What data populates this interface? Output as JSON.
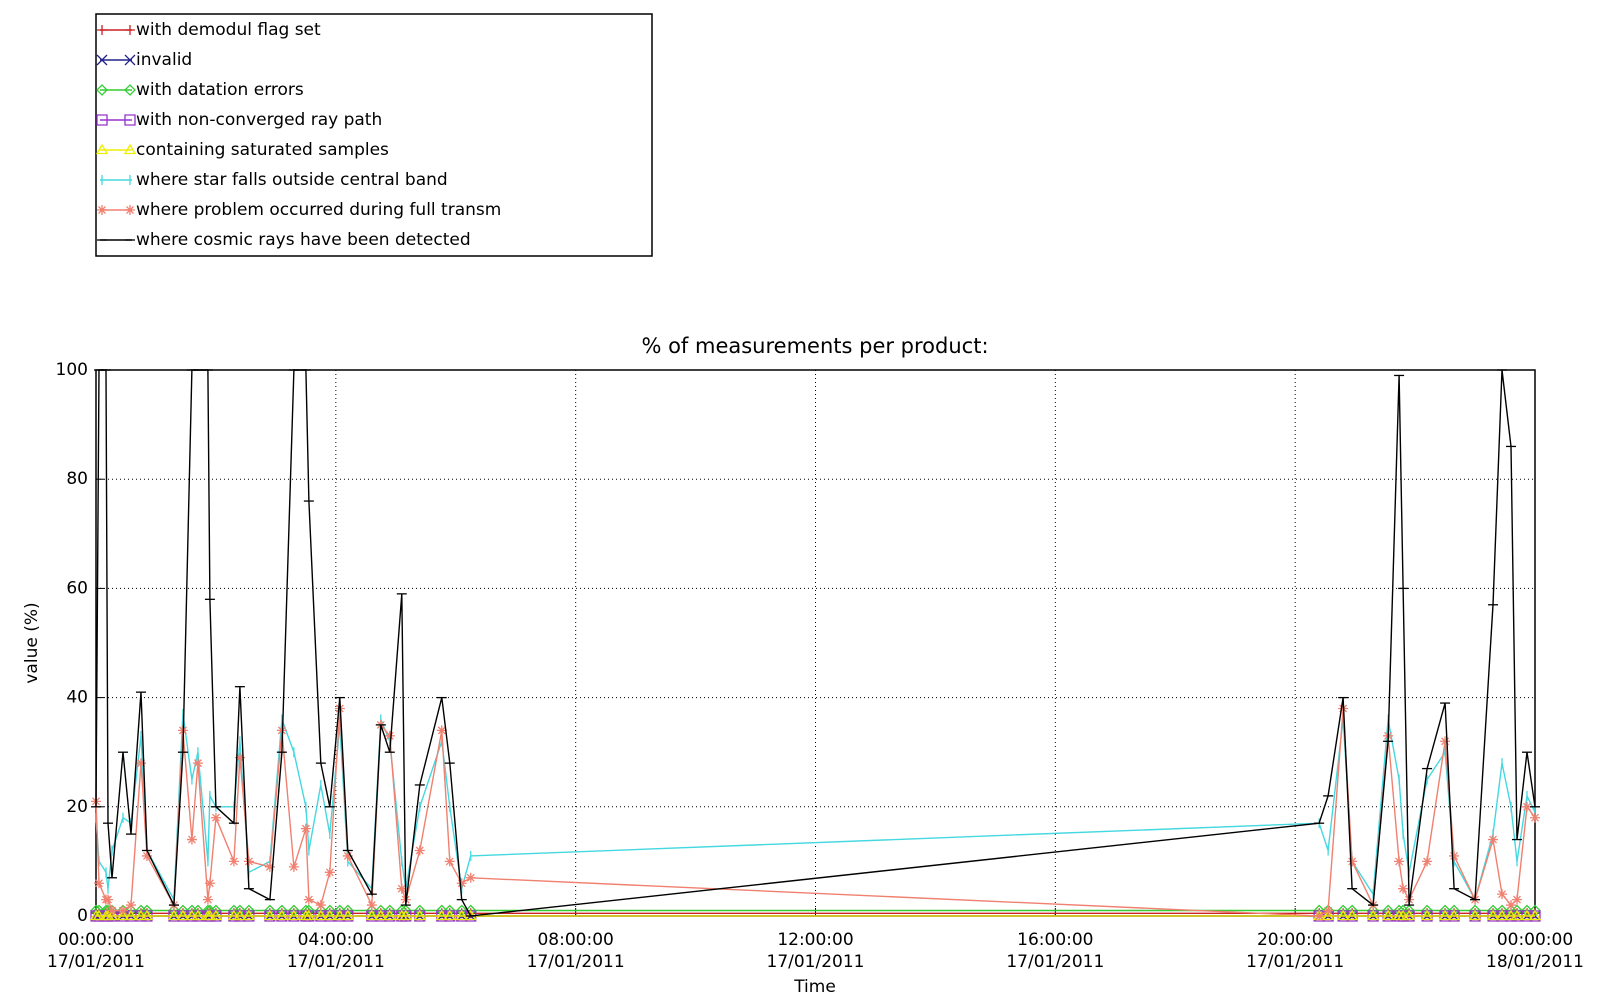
{
  "chart_data": {
    "type": "line",
    "title": "% of measurements per product:",
    "xlabel": "Time",
    "ylabel": "value (%)",
    "grid": true,
    "legend": "top-left",
    "xlim": [
      "2011-01-17T00:00:00",
      "2011-01-18T00:00:00"
    ],
    "xticks": [
      {
        "value": "2011-01-17T00:00:00",
        "label": [
          "00:00:00",
          "17/01/2011"
        ]
      },
      {
        "value": "2011-01-17T04:00:00",
        "label": [
          "04:00:00",
          "17/01/2011"
        ]
      },
      {
        "value": "2011-01-17T08:00:00",
        "label": [
          "08:00:00",
          "17/01/2011"
        ]
      },
      {
        "value": "2011-01-17T12:00:00",
        "label": [
          "12:00:00",
          "17/01/2011"
        ]
      },
      {
        "value": "2011-01-17T16:00:00",
        "label": [
          "16:00:00",
          "17/01/2011"
        ]
      },
      {
        "value": "2011-01-17T20:00:00",
        "label": [
          "20:00:00",
          "17/01/2011"
        ]
      },
      {
        "value": "2011-01-18T00:00:00",
        "label": [
          "00:00:00",
          "18/01/2011"
        ]
      }
    ],
    "ylim": [
      0,
      100
    ],
    "yticks": [
      0,
      20,
      40,
      60,
      80,
      100
    ],
    "x": [
      "2011-01-17T00:00:00",
      "2011-01-17T00:03:00",
      "2011-01-17T00:10:00",
      "2011-01-17T00:12:00",
      "2011-01-17T00:16:00",
      "2011-01-17T00:27:00",
      "2011-01-17T00:35:00",
      "2011-01-17T00:45:00",
      "2011-01-17T00:51:00",
      "2011-01-17T01:18:00",
      "2011-01-17T01:27:00",
      "2011-01-17T01:36:00",
      "2011-01-17T01:42:00",
      "2011-01-17T01:52:00",
      "2011-01-17T01:54:00",
      "2011-01-17T02:00:00",
      "2011-01-17T02:18:00",
      "2011-01-17T02:24:00",
      "2011-01-17T02:33:00",
      "2011-01-17T02:54:00",
      "2011-01-17T03:06:00",
      "2011-01-17T03:18:00",
      "2011-01-17T03:30:00",
      "2011-01-17T03:33:00",
      "2011-01-17T03:45:00",
      "2011-01-17T03:54:00",
      "2011-01-17T04:04:00",
      "2011-01-17T04:12:00",
      "2011-01-17T04:36:00",
      "2011-01-17T04:45:00",
      "2011-01-17T04:54:00",
      "2011-01-17T05:06:00",
      "2011-01-17T05:10:00",
      "2011-01-17T05:24:00",
      "2011-01-17T05:46:00",
      "2011-01-17T05:54:00",
      "2011-01-17T06:06:00",
      "2011-01-17T06:15:00",
      "2011-01-17T20:24:00",
      "2011-01-17T20:33:00",
      "2011-01-17T20:48:00",
      "2011-01-17T20:57:00",
      "2011-01-17T21:18:00",
      "2011-01-17T21:33:00",
      "2011-01-17T21:44:00",
      "2011-01-17T21:48:00",
      "2011-01-17T21:54:00",
      "2011-01-17T22:12:00",
      "2011-01-17T22:30:00",
      "2011-01-17T22:39:00",
      "2011-01-17T23:00:00",
      "2011-01-17T23:18:00",
      "2011-01-17T23:27:00",
      "2011-01-17T23:36:00",
      "2011-01-17T23:42:00",
      "2011-01-17T23:52:00",
      "2011-01-18T00:00:00"
    ],
    "series": [
      {
        "name": "with demodul flag set",
        "color": "#cc2222",
        "marker": "plus",
        "values": [
          0.5,
          0.5,
          0.5,
          0.5,
          0.5,
          0.5,
          0.5,
          0.5,
          0.5,
          0.5,
          0.5,
          0.5,
          0.5,
          0.5,
          0.5,
          0.5,
          0.5,
          0.5,
          0.5,
          0.5,
          0.5,
          0.5,
          0.5,
          0.5,
          0.5,
          0.5,
          0.5,
          0.5,
          0.5,
          0.5,
          0.5,
          0.5,
          0.5,
          0.5,
          0.5,
          0.5,
          0.5,
          0.5,
          0.5,
          0.5,
          0.5,
          0.5,
          0.5,
          0.5,
          0.5,
          0.5,
          0.5,
          0.5,
          0.5,
          0.5,
          0.5,
          0.5,
          0.5,
          0.5,
          0.5,
          0.5,
          0.5
        ]
      },
      {
        "name": "invalid",
        "color": "#22228c",
        "marker": "x",
        "values": [
          0,
          0,
          0,
          0,
          0,
          0,
          0,
          0,
          0,
          0,
          0,
          0,
          0,
          0,
          0,
          0,
          0,
          0,
          0,
          0,
          0,
          0,
          0,
          0,
          0,
          0,
          0,
          0,
          0,
          0,
          0,
          0,
          0,
          0,
          0,
          0,
          0,
          0,
          0,
          0,
          0,
          0,
          0,
          0,
          0,
          0,
          0,
          0,
          0,
          0,
          0,
          0,
          0,
          0,
          0,
          0,
          0
        ]
      },
      {
        "name": "with datation errors",
        "color": "#33cc33",
        "marker": "diamond",
        "values": [
          1,
          1,
          1,
          1,
          1,
          1,
          1,
          1,
          1,
          1,
          1,
          1,
          1,
          1,
          1,
          1,
          1,
          1,
          1,
          1,
          1,
          1,
          1,
          1,
          1,
          1,
          1,
          1,
          1,
          1,
          1,
          1,
          1,
          1,
          1,
          1,
          1,
          1,
          1,
          1,
          1,
          1,
          1,
          1,
          1,
          1,
          1,
          1,
          1,
          1,
          1,
          1,
          1,
          1,
          1,
          1,
          1
        ]
      },
      {
        "name": "with non-converged ray path",
        "color": "#9933cc",
        "marker": "square",
        "values": [
          0,
          0,
          0,
          0,
          0,
          0,
          0,
          0,
          0,
          0,
          0,
          0,
          0,
          0,
          0,
          0,
          0,
          0,
          0,
          0,
          0,
          0,
          0,
          0,
          0,
          0,
          0,
          0,
          0,
          0,
          0,
          0,
          0,
          0,
          0,
          0,
          0,
          0,
          0,
          0,
          0,
          0,
          0,
          0,
          0,
          0,
          0,
          0,
          0,
          0,
          0,
          0,
          0,
          0,
          0,
          0,
          0
        ]
      },
      {
        "name": "containing saturated samples",
        "color": "#eeee00",
        "marker": "triangle",
        "values": [
          0,
          0,
          0,
          0,
          0,
          0,
          0,
          0,
          0,
          0,
          0,
          0,
          0,
          0,
          0,
          0,
          0,
          0,
          0,
          0,
          0,
          0,
          0,
          0,
          0,
          0,
          0,
          0,
          0,
          0,
          0,
          0,
          0,
          0,
          0,
          0,
          0,
          0,
          0,
          0,
          0,
          0,
          0,
          0,
          0,
          0,
          0,
          0,
          0,
          0,
          0,
          0,
          0,
          0,
          0,
          0,
          0
        ]
      },
      {
        "name": "where star falls outside central band",
        "color": "#44d8e0",
        "marker": "bar",
        "values": [
          18,
          10,
          8,
          5,
          12,
          18,
          17,
          33,
          12,
          3,
          37,
          25,
          30,
          10,
          22,
          20,
          20,
          32,
          8,
          10,
          36,
          30,
          20,
          12,
          24,
          15,
          35,
          10,
          5,
          36,
          32,
          10,
          5,
          20,
          32,
          20,
          5,
          11,
          17,
          12,
          36,
          10,
          4,
          36,
          25,
          15,
          8,
          25,
          30,
          10,
          3,
          15,
          28,
          20,
          10,
          22,
          19
        ]
      },
      {
        "name": "where problem occurred during full transm",
        "color": "#f08070",
        "marker": "asterisk",
        "values": [
          21,
          6,
          3,
          3,
          1,
          1,
          2,
          28,
          11,
          2,
          34,
          14,
          28,
          3,
          6,
          18,
          10,
          29,
          10,
          9,
          34,
          9,
          16,
          3,
          2,
          8,
          38,
          11,
          2,
          35,
          33,
          5,
          3,
          12,
          34,
          10,
          6,
          7,
          0,
          1,
          38,
          10,
          2,
          33,
          10,
          5,
          3,
          10,
          32,
          11,
          3,
          14,
          4,
          2,
          3,
          20,
          18
        ]
      },
      {
        "name": "where cosmic rays have been detected",
        "color": "#000000",
        "marker": "hbar",
        "values": [
          20,
          100,
          100,
          17,
          7,
          30,
          15,
          41,
          12,
          2,
          30,
          100,
          100,
          100,
          58,
          20,
          17,
          42,
          5,
          3,
          30,
          100,
          100,
          76,
          28,
          20,
          40,
          12,
          4,
          35,
          30,
          59,
          2,
          24,
          40,
          28,
          3,
          0,
          17,
          22,
          40,
          5,
          2,
          32,
          99,
          60,
          2,
          27,
          39,
          5,
          3,
          57,
          100,
          86,
          14,
          30,
          20
        ]
      }
    ]
  }
}
